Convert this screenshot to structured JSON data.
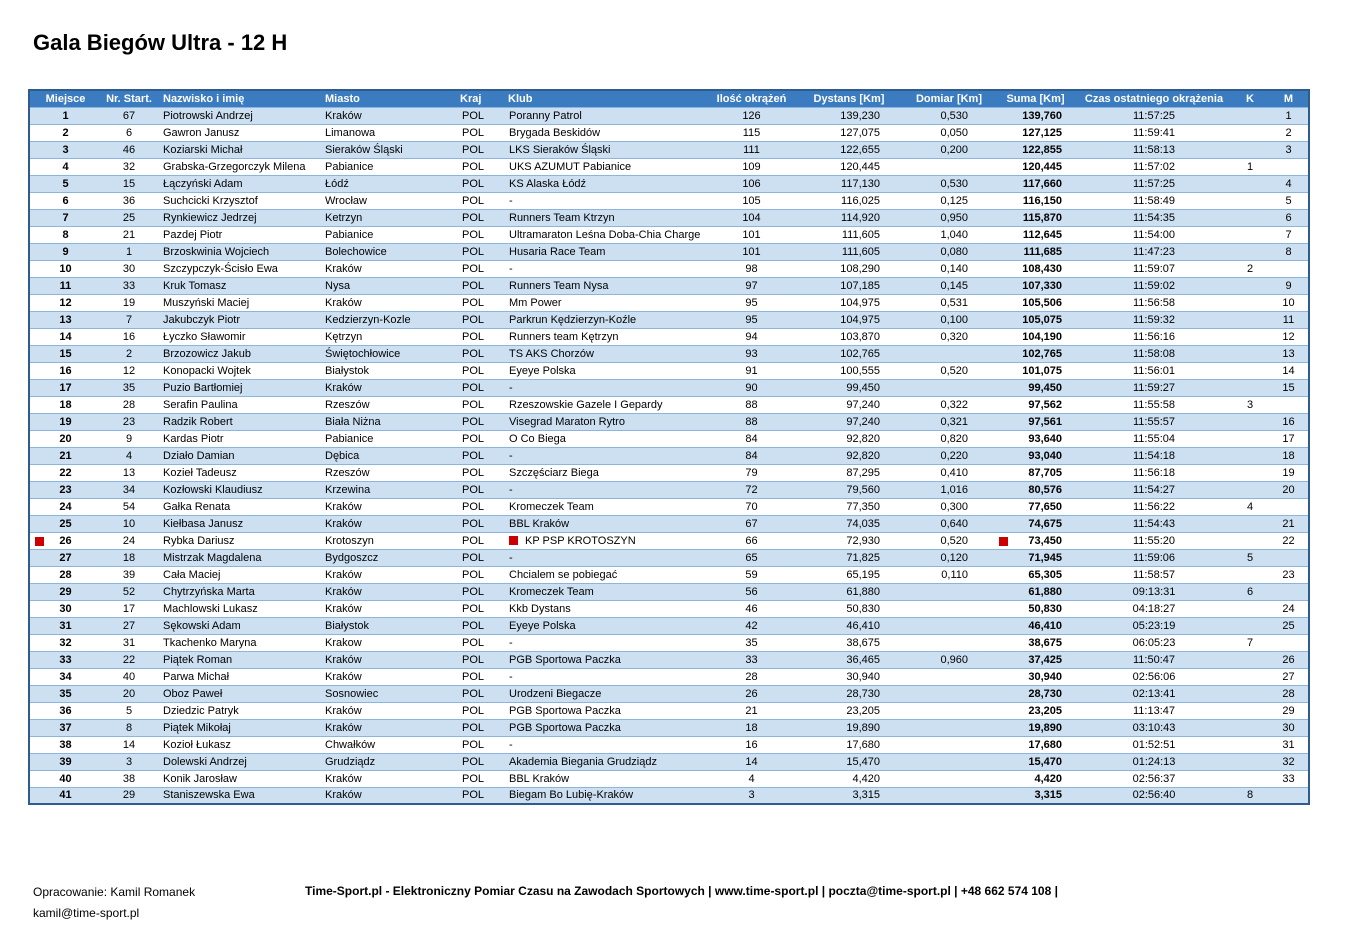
{
  "title": "Gala Biegów Ultra - 12 H",
  "colors": {
    "header-bg": "#3b7cc0",
    "band-bg": "#cde0f2",
    "sep": "#8db4dc",
    "outer": "#2f5c8c",
    "mark": "#cc0000"
  },
  "footer": {
    "credit": "Opracowanie: Kamil Romanek",
    "email": "kamil@time-sport.pl",
    "center": "Time-Sport.pl - Elektroniczny Pomiar Czasu na Zawodach Sportowych | www.time-sport.pl | poczta@time-sport.pl | +48 662 574 108 |"
  },
  "table": {
    "columns": [
      {
        "key": "p",
        "label": "Miejsce"
      },
      {
        "key": "nr",
        "label": "Nr. Start."
      },
      {
        "key": "name",
        "label": "Nazwisko i imię"
      },
      {
        "key": "city",
        "label": "Miasto"
      },
      {
        "key": "country",
        "label": "Kraj"
      },
      {
        "key": "club",
        "label": "Klub"
      },
      {
        "key": "laps",
        "label": "Ilość okrążeń"
      },
      {
        "key": "dist",
        "label": "Dystans  [Km]"
      },
      {
        "key": "extra",
        "label": "Domiar [Km]"
      },
      {
        "key": "sum",
        "label": "Suma [Km]"
      },
      {
        "key": "time",
        "label": "Czas ostatniego okrążenia"
      },
      {
        "key": "k",
        "label": "K"
      },
      {
        "key": "m",
        "label": "M"
      }
    ],
    "rows": [
      {
        "p": "1",
        "nr": "67",
        "name": "Piotrowski Andrzej",
        "city": "Kraków",
        "country": "POL",
        "club": "Poranny Patrol",
        "laps": "126",
        "dist": "139,230",
        "extra": "0,530",
        "sum": "139,760",
        "time": "11:57:25",
        "k": "",
        "m": "1"
      },
      {
        "p": "2",
        "nr": "6",
        "name": "Gawron Janusz",
        "city": "Limanowa",
        "country": "POL",
        "club": "Brygada Beskidów",
        "laps": "115",
        "dist": "127,075",
        "extra": "0,050",
        "sum": "127,125",
        "time": "11:59:41",
        "k": "",
        "m": "2"
      },
      {
        "p": "3",
        "nr": "46",
        "name": "Koziarski Michał",
        "city": "Sieraków Śląski",
        "country": "POL",
        "club": "LKS Sieraków Śląski",
        "laps": "111",
        "dist": "122,655",
        "extra": "0,200",
        "sum": "122,855",
        "time": "11:58:13",
        "k": "",
        "m": "3"
      },
      {
        "p": "4",
        "nr": "32",
        "name": "Grabska-Grzegorczyk Milena",
        "city": "Pabianice",
        "country": "POL",
        "club": "UKS AZUMUT Pabianice",
        "laps": "109",
        "dist": "120,445",
        "extra": "",
        "sum": "120,445",
        "time": "11:57:02",
        "k": "1",
        "m": ""
      },
      {
        "p": "5",
        "nr": "15",
        "name": "Łączyński Adam",
        "city": "Łódź",
        "country": "POL",
        "club": "KS Alaska Łódź",
        "laps": "106",
        "dist": "117,130",
        "extra": "0,530",
        "sum": "117,660",
        "time": "11:57:25",
        "k": "",
        "m": "4"
      },
      {
        "p": "6",
        "nr": "36",
        "name": "Suchcicki Krzysztof",
        "city": "Wrocław",
        "country": "POL",
        "club": "-",
        "laps": "105",
        "dist": "116,025",
        "extra": "0,125",
        "sum": "116,150",
        "time": "11:58:49",
        "k": "",
        "m": "5"
      },
      {
        "p": "7",
        "nr": "25",
        "name": "Rynkiewicz Jedrzej",
        "city": "Ketrzyn",
        "country": "POL",
        "club": "Runners Team Ktrzyn",
        "laps": "104",
        "dist": "114,920",
        "extra": "0,950",
        "sum": "115,870",
        "time": "11:54:35",
        "k": "",
        "m": "6"
      },
      {
        "p": "8",
        "nr": "21",
        "name": "Pazdej Piotr",
        "city": "Pabianice",
        "country": "POL",
        "club": "Ultramaraton Leśna Doba-Chia Charge",
        "laps": "101",
        "dist": "111,605",
        "extra": "1,040",
        "sum": "112,645",
        "time": "11:54:00",
        "k": "",
        "m": "7"
      },
      {
        "p": "9",
        "nr": "1",
        "name": "Brzoskwinia Wojciech",
        "city": "Bolechowice",
        "country": "POL",
        "club": "Husaria Race Team",
        "laps": "101",
        "dist": "111,605",
        "extra": "0,080",
        "sum": "111,685",
        "time": "11:47:23",
        "k": "",
        "m": "8"
      },
      {
        "p": "10",
        "nr": "30",
        "name": "Szczypczyk-Ścisło Ewa",
        "city": "Kraków",
        "country": "POL",
        "club": "-",
        "laps": "98",
        "dist": "108,290",
        "extra": "0,140",
        "sum": "108,430",
        "time": "11:59:07",
        "k": "2",
        "m": ""
      },
      {
        "p": "11",
        "nr": "33",
        "name": "Kruk Tomasz",
        "city": "Nysa",
        "country": "POL",
        "club": "Runners Team Nysa",
        "laps": "97",
        "dist": "107,185",
        "extra": "0,145",
        "sum": "107,330",
        "time": "11:59:02",
        "k": "",
        "m": "9"
      },
      {
        "p": "12",
        "nr": "19",
        "name": "Muszyński Maciej",
        "city": "Kraków",
        "country": "POL",
        "club": "Mm Power",
        "laps": "95",
        "dist": "104,975",
        "extra": "0,531",
        "sum": "105,506",
        "time": "11:56:58",
        "k": "",
        "m": "10"
      },
      {
        "p": "13",
        "nr": "7",
        "name": "Jakubczyk Piotr",
        "city": "Kedzierzyn-Kozle",
        "country": "POL",
        "club": "Parkrun Kędzierzyn-Koźle",
        "laps": "95",
        "dist": "104,975",
        "extra": "0,100",
        "sum": "105,075",
        "time": "11:59:32",
        "k": "",
        "m": "11"
      },
      {
        "p": "14",
        "nr": "16",
        "name": "Łyczko Sławomir",
        "city": "Kętrzyn",
        "country": "POL",
        "club": "Runners team Kętrzyn",
        "laps": "94",
        "dist": "103,870",
        "extra": "0,320",
        "sum": "104,190",
        "time": "11:56:16",
        "k": "",
        "m": "12"
      },
      {
        "p": "15",
        "nr": "2",
        "name": "Brzozowicz Jakub",
        "city": "Świętochłowice",
        "country": "POL",
        "club": "TS AKS Chorzów",
        "laps": "93",
        "dist": "102,765",
        "extra": "",
        "sum": "102,765",
        "time": "11:58:08",
        "k": "",
        "m": "13"
      },
      {
        "p": "16",
        "nr": "12",
        "name": "Konopacki Wojtek",
        "city": "Białystok",
        "country": "POL",
        "club": "Eyeye Polska",
        "laps": "91",
        "dist": "100,555",
        "extra": "0,520",
        "sum": "101,075",
        "time": "11:56:01",
        "k": "",
        "m": "14"
      },
      {
        "p": "17",
        "nr": "35",
        "name": "Puzio Bartłomiej",
        "city": "Kraków",
        "country": "POL",
        "club": "-",
        "laps": "90",
        "dist": "99,450",
        "extra": "",
        "sum": "99,450",
        "time": "11:59:27",
        "k": "",
        "m": "15"
      },
      {
        "p": "18",
        "nr": "28",
        "name": "Serafin Paulina",
        "city": "Rzeszów",
        "country": "POL",
        "club": "Rzeszowskie Gazele I Gepardy",
        "laps": "88",
        "dist": "97,240",
        "extra": "0,322",
        "sum": "97,562",
        "time": "11:55:58",
        "k": "3",
        "m": ""
      },
      {
        "p": "19",
        "nr": "23",
        "name": "Radzik Robert",
        "city": "Biała Niżna",
        "country": "POL",
        "club": "Visegrad Maraton Rytro",
        "laps": "88",
        "dist": "97,240",
        "extra": "0,321",
        "sum": "97,561",
        "time": "11:55:57",
        "k": "",
        "m": "16"
      },
      {
        "p": "20",
        "nr": "9",
        "name": "Kardas Piotr",
        "city": "Pabianice",
        "country": "POL",
        "club": "O Co Biega",
        "laps": "84",
        "dist": "92,820",
        "extra": "0,820",
        "sum": "93,640",
        "time": "11:55:04",
        "k": "",
        "m": "17"
      },
      {
        "p": "21",
        "nr": "4",
        "name": "Działo Damian",
        "city": "Dębica",
        "country": "POL",
        "club": "-",
        "laps": "84",
        "dist": "92,820",
        "extra": "0,220",
        "sum": "93,040",
        "time": "11:54:18",
        "k": "",
        "m": "18"
      },
      {
        "p": "22",
        "nr": "13",
        "name": "Kozieł Tadeusz",
        "city": "Rzeszów",
        "country": "POL",
        "club": "Szczęściarz Biega",
        "laps": "79",
        "dist": "87,295",
        "extra": "0,410",
        "sum": "87,705",
        "time": "11:56:18",
        "k": "",
        "m": "19"
      },
      {
        "p": "23",
        "nr": "34",
        "name": "Kozłowski Klaudiusz",
        "city": "Krzewina",
        "country": "POL",
        "club": "-",
        "laps": "72",
        "dist": "79,560",
        "extra": "1,016",
        "sum": "80,576",
        "time": "11:54:27",
        "k": "",
        "m": "20"
      },
      {
        "p": "24",
        "nr": "54",
        "name": "Gałka Renata",
        "city": "Kraków",
        "country": "POL",
        "club": "Kromeczek Team",
        "laps": "70",
        "dist": "77,350",
        "extra": "0,300",
        "sum": "77,650",
        "time": "11:56:22",
        "k": "4",
        "m": ""
      },
      {
        "p": "25",
        "nr": "10",
        "name": "Kiełbasa Janusz",
        "city": "Kraków",
        "country": "POL",
        "club": "BBL Kraków",
        "laps": "67",
        "dist": "74,035",
        "extra": "0,640",
        "sum": "74,675",
        "time": "11:54:43",
        "k": "",
        "m": "21"
      },
      {
        "p": "26",
        "nr": "24",
        "name": "Rybka Dariusz",
        "city": "Krotoszyn",
        "country": "POL",
        "club": "KP PSP KROTOSZYN",
        "laps": "66",
        "dist": "72,930",
        "extra": "0,520",
        "sum": "73,450",
        "time": "11:55:20",
        "k": "",
        "m": "22",
        "marks": [
          "p",
          "club",
          "sum"
        ]
      },
      {
        "p": "27",
        "nr": "18",
        "name": "Mistrzak Magdalena",
        "city": "Bydgoszcz",
        "country": "POL",
        "club": "-",
        "laps": "65",
        "dist": "71,825",
        "extra": "0,120",
        "sum": "71,945",
        "time": "11:59:06",
        "k": "5",
        "m": ""
      },
      {
        "p": "28",
        "nr": "39",
        "name": "Cała Maciej",
        "city": "Kraków",
        "country": "POL",
        "club": "Chcialem se pobiegać",
        "laps": "59",
        "dist": "65,195",
        "extra": "0,110",
        "sum": "65,305",
        "time": "11:58:57",
        "k": "",
        "m": "23"
      },
      {
        "p": "29",
        "nr": "52",
        "name": "Chytrzyńska Marta",
        "city": "Kraków",
        "country": "POL",
        "club": "Kromeczek Team",
        "laps": "56",
        "dist": "61,880",
        "extra": "",
        "sum": "61,880",
        "time": "09:13:31",
        "k": "6",
        "m": ""
      },
      {
        "p": "30",
        "nr": "17",
        "name": "Machlowski Lukasz",
        "city": "Kraków",
        "country": "POL",
        "club": "Kkb Dystans",
        "laps": "46",
        "dist": "50,830",
        "extra": "",
        "sum": "50,830",
        "time": "04:18:27",
        "k": "",
        "m": "24"
      },
      {
        "p": "31",
        "nr": "27",
        "name": "Sękowski Adam",
        "city": "Białystok",
        "country": "POL",
        "club": "Eyeye Polska",
        "laps": "42",
        "dist": "46,410",
        "extra": "",
        "sum": "46,410",
        "time": "05:23:19",
        "k": "",
        "m": "25"
      },
      {
        "p": "32",
        "nr": "31",
        "name": "Tkachenko Maryna",
        "city": "Krakow",
        "country": "POL",
        "club": "-",
        "laps": "35",
        "dist": "38,675",
        "extra": "",
        "sum": "38,675",
        "time": "06:05:23",
        "k": "7",
        "m": ""
      },
      {
        "p": "33",
        "nr": "22",
        "name": "Piątek Roman",
        "city": "Kraków",
        "country": "POL",
        "club": "PGB Sportowa Paczka",
        "laps": "33",
        "dist": "36,465",
        "extra": "0,960",
        "sum": "37,425",
        "time": "11:50:47",
        "k": "",
        "m": "26"
      },
      {
        "p": "34",
        "nr": "40",
        "name": "Parwa Michał",
        "city": "Kraków",
        "country": "POL",
        "club": "-",
        "laps": "28",
        "dist": "30,940",
        "extra": "",
        "sum": "30,940",
        "time": "02:56:06",
        "k": "",
        "m": "27"
      },
      {
        "p": "35",
        "nr": "20",
        "name": "Oboz Paweł",
        "city": "Sosnowiec",
        "country": "POL",
        "club": "Urodzeni Biegacze",
        "laps": "26",
        "dist": "28,730",
        "extra": "",
        "sum": "28,730",
        "time": "02:13:41",
        "k": "",
        "m": "28"
      },
      {
        "p": "36",
        "nr": "5",
        "name": "Dziedzic Patryk",
        "city": "Kraków",
        "country": "POL",
        "club": "PGB Sportowa Paczka",
        "laps": "21",
        "dist": "23,205",
        "extra": "",
        "sum": "23,205",
        "time": "11:13:47",
        "k": "",
        "m": "29"
      },
      {
        "p": "37",
        "nr": "8",
        "name": "Piątek Mikołaj",
        "city": "Kraków",
        "country": "POL",
        "club": "PGB Sportowa Paczka",
        "laps": "18",
        "dist": "19,890",
        "extra": "",
        "sum": "19,890",
        "time": "03:10:43",
        "k": "",
        "m": "30"
      },
      {
        "p": "38",
        "nr": "14",
        "name": "Kozioł Łukasz",
        "city": "Chwałków",
        "country": "POL",
        "club": "-",
        "laps": "16",
        "dist": "17,680",
        "extra": "",
        "sum": "17,680",
        "time": "01:52:51",
        "k": "",
        "m": "31"
      },
      {
        "p": "39",
        "nr": "3",
        "name": "Dolewski Andrzej",
        "city": "Grudziądz",
        "country": "POL",
        "club": "Akademia Biegania Grudziądz",
        "laps": "14",
        "dist": "15,470",
        "extra": "",
        "sum": "15,470",
        "time": "01:24:13",
        "k": "",
        "m": "32"
      },
      {
        "p": "40",
        "nr": "38",
        "name": "Konik Jarosław",
        "city": "Kraków",
        "country": "POL",
        "club": "BBL Kraków",
        "laps": "4",
        "dist": "4,420",
        "extra": "",
        "sum": "4,420",
        "time": "02:56:37",
        "k": "",
        "m": "33"
      },
      {
        "p": "41",
        "nr": "29",
        "name": "Staniszewska Ewa",
        "city": "Kraków",
        "country": "POL",
        "club": "Biegam Bo Lubię-Kraków",
        "laps": "3",
        "dist": "3,315",
        "extra": "",
        "sum": "3,315",
        "time": "02:56:40",
        "k": "8",
        "m": ""
      }
    ]
  }
}
